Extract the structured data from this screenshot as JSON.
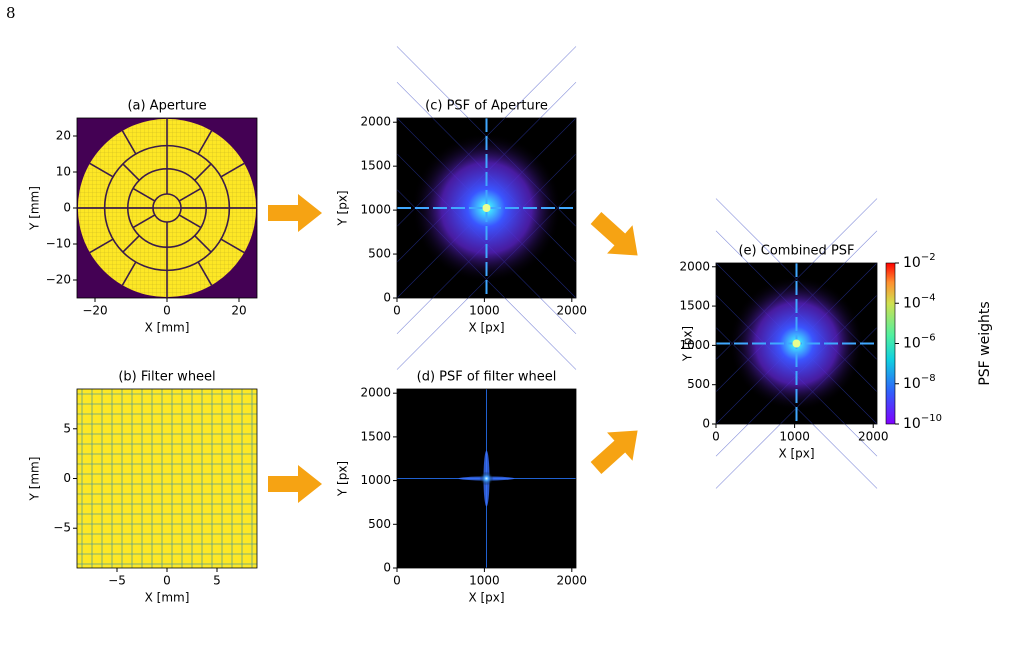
{
  "page_number": "8",
  "chart_data": [
    {
      "type": "image",
      "title": "(a) Aperture",
      "xlabel": "X [mm]",
      "ylabel": "Y [mm]",
      "xlim": [
        -25,
        25
      ],
      "ylim": [
        -25,
        25
      ],
      "xticks": [
        {
          "value": -20,
          "label": "−20"
        },
        0,
        20
      ],
      "yticks": [
        {
          "value": -20,
          "label": "−20"
        },
        {
          "value": -10,
          "label": "−10"
        },
        0,
        10,
        20
      ]
    },
    {
      "type": "image",
      "title": "(b) Filter wheel",
      "xlabel": "X [mm]",
      "ylabel": "Y [mm]",
      "xlim": [
        -9,
        9
      ],
      "ylim": [
        -9,
        9
      ],
      "xticks": [
        {
          "value": -5,
          "label": "−5"
        },
        0,
        5
      ],
      "yticks": [
        {
          "value": -5,
          "label": "−5"
        },
        0,
        5
      ]
    },
    {
      "type": "image",
      "title": "(c) PSF of Aperture",
      "xlabel": "X [px]",
      "ylabel": "Y [px]",
      "xlim": [
        0,
        2048
      ],
      "ylim": [
        0,
        2048
      ],
      "xticks": [
        0,
        1000,
        2000
      ],
      "yticks": [
        0,
        500,
        1000,
        1500,
        2000
      ]
    },
    {
      "type": "image",
      "title": "(d) PSF of filter wheel",
      "xlabel": "X [px]",
      "ylabel": "Y [px]",
      "xlim": [
        0,
        2048
      ],
      "ylim": [
        0,
        2048
      ],
      "xticks": [
        0,
        1000,
        2000
      ],
      "yticks": [
        0,
        500,
        1000,
        1500,
        2000
      ]
    },
    {
      "type": "image",
      "title": "(e) Combined PSF",
      "xlabel": "X [px]",
      "ylabel": "Y [px]",
      "xlim": [
        0,
        2048
      ],
      "ylim": [
        0,
        2048
      ],
      "xticks": [
        0,
        1000,
        2000
      ],
      "yticks": [
        0,
        500,
        1000,
        1500,
        2000
      ],
      "colorbar": {
        "label": "PSF weights",
        "scale": "log",
        "lim": [
          1e-10,
          0.01
        ],
        "ticks": [
          {
            "value": 1e-10,
            "label": "10−10"
          },
          {
            "value": 1e-08,
            "label": "10−8"
          },
          {
            "value": 1e-06,
            "label": "10−6"
          },
          {
            "value": 0.0001,
            "label": "10−4"
          },
          {
            "value": 0.01,
            "label": "10−2"
          }
        ]
      }
    }
  ]
}
